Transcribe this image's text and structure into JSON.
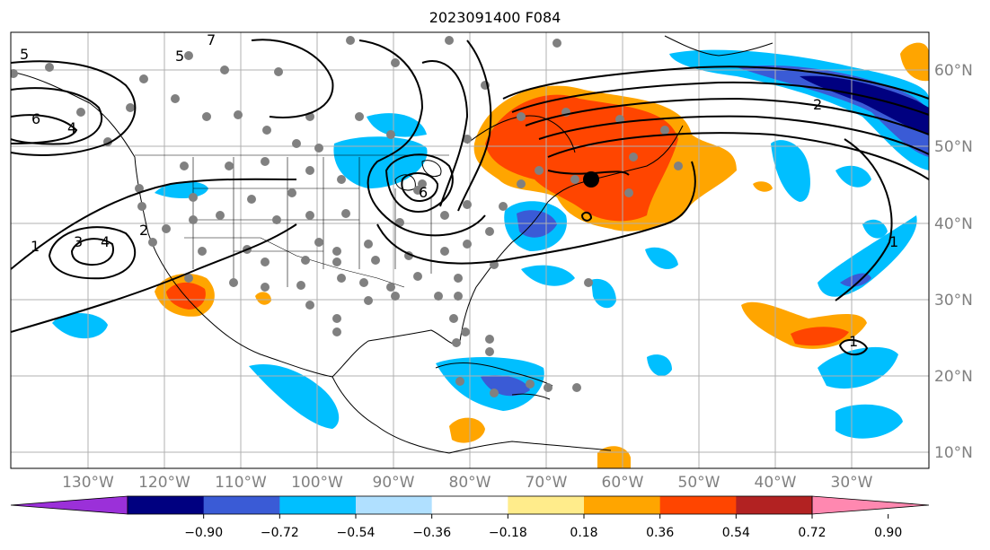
{
  "title": "2023091400 F084",
  "map": {
    "lat_labels": [
      "60°N",
      "50°N",
      "40°N",
      "30°N",
      "20°N",
      "10°N"
    ],
    "lon_labels": [
      "130°W",
      "120°W",
      "110°W",
      "100°W",
      "90°W",
      "80°W",
      "70°W",
      "60°W",
      "50°W",
      "40°W",
      "30°W"
    ],
    "contour_labels": [
      "5",
      "5",
      "7",
      "6",
      "4",
      "2",
      "3",
      "4",
      "1",
      "2",
      "6",
      "1",
      "1"
    ]
  },
  "colorbar": {
    "ticks": [
      "−0.90",
      "−0.72",
      "−0.54",
      "−0.36",
      "−0.18",
      "0.18",
      "0.36",
      "0.54",
      "0.72",
      "0.90"
    ],
    "colors": [
      "#9b30d9",
      "#000080",
      "#3a5bd6",
      "#00bfff",
      "#b0e0ff",
      "#ffffff",
      "#ffec8b",
      "#ffa500",
      "#ff4500",
      "#b22222",
      "#ff88b0"
    ]
  }
}
